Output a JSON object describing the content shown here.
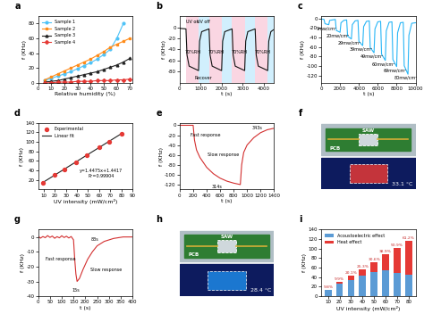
{
  "chart_data": [
    {
      "panel": "a",
      "type": "line",
      "xlabel": "Relative humidity (%)",
      "ylabel": "f (KHz)",
      "xlim": [
        0,
        72
      ],
      "xticks": [
        0,
        10,
        20,
        30,
        40,
        50,
        60,
        70
      ],
      "ylim": [
        0,
        90
      ],
      "yticks": [
        0,
        20,
        40,
        60,
        80
      ],
      "legend": "upper left",
      "series": [
        {
          "name": "Sample 1",
          "color": "#4fc3f7",
          "marker": "circle",
          "x": [
            5,
            10,
            15,
            20,
            25,
            30,
            35,
            40,
            45,
            50,
            55,
            60,
            65
          ],
          "values": [
            3,
            6,
            9,
            12,
            15,
            19,
            23,
            27,
            32,
            38,
            45,
            60,
            80
          ]
        },
        {
          "name": "Sample 2",
          "color": "#ff8c1a",
          "marker": "square",
          "x": [
            5,
            10,
            15,
            20,
            25,
            30,
            35,
            40,
            45,
            50,
            55,
            60,
            65,
            70
          ],
          "values": [
            4,
            8,
            12,
            16,
            20,
            24,
            28,
            32,
            37,
            42,
            48,
            52,
            56,
            60
          ]
        },
        {
          "name": "Sample 3",
          "color": "#222222",
          "marker": "triangle",
          "x": [
            5,
            10,
            15,
            20,
            25,
            30,
            35,
            40,
            45,
            50,
            55,
            60,
            65,
            70
          ],
          "values": [
            1,
            2,
            3,
            5,
            7,
            9,
            11,
            13,
            15,
            18,
            21,
            24,
            28,
            33
          ]
        },
        {
          "name": "Sample 4",
          "color": "#e53935",
          "marker": "diamond",
          "x": [
            5,
            10,
            15,
            20,
            25,
            30,
            35,
            40,
            45,
            50,
            55,
            60,
            65,
            70
          ],
          "values": [
            0,
            0,
            1,
            1,
            1,
            2,
            2,
            2,
            3,
            3,
            3,
            4,
            4,
            5
          ]
        }
      ]
    },
    {
      "panel": "b",
      "type": "line",
      "xlabel": "t (s)",
      "ylabel": "f (KHz)",
      "xlim": [
        0,
        4500
      ],
      "xticks": [
        0,
        1000,
        2000,
        3000,
        4000
      ],
      "ylim": [
        -100,
        20
      ],
      "yticks": [
        -80,
        -60,
        -40,
        -20,
        0
      ],
      "uv_on": [
        [
          300,
          900
        ],
        [
          1400,
          2000
        ],
        [
          2500,
          3100
        ],
        [
          3600,
          4200
        ]
      ],
      "rh_70": [
        [
          900,
          1400
        ],
        [
          2000,
          2500
        ],
        [
          3100,
          3600
        ],
        [
          4200,
          4500
        ]
      ],
      "series": [
        {
          "color": "#111111",
          "x": [
            0,
            300,
            350,
            450,
            900,
            950,
            1050,
            1400,
            1450,
            1550,
            2000,
            2050,
            2150,
            2500,
            2550,
            2650,
            3100,
            3150,
            3250,
            3600,
            3650,
            3750,
            4200,
            4250,
            4350,
            4500
          ],
          "values": [
            -2,
            -3,
            -50,
            -70,
            -78,
            -25,
            -8,
            -3,
            -50,
            -70,
            -78,
            -25,
            -8,
            -3,
            -50,
            -70,
            -78,
            -25,
            -8,
            -3,
            -50,
            -70,
            -78,
            -25,
            -8,
            -4
          ]
        }
      ],
      "annotations": [
        {
          "text": "UV on",
          "x": 600,
          "y": 10
        },
        {
          "text": "UV off",
          "x": 1150,
          "y": 10
        },
        {
          "text": "Recover",
          "x": 1150,
          "y": -92
        },
        {
          "text": "70%RH",
          "x": 650,
          "y": -45
        },
        {
          "text": "70%RH",
          "x": 1750,
          "y": -45
        },
        {
          "text": "70%RH",
          "x": 2850,
          "y": -45
        },
        {
          "text": "70%RH",
          "x": 3950,
          "y": -45
        }
      ]
    },
    {
      "panel": "c",
      "type": "line",
      "xlabel": "t (s)",
      "ylabel": "f (KHz)",
      "xlim": [
        0,
        10000
      ],
      "xticks": [
        0,
        2000,
        4000,
        6000,
        8000,
        10000
      ],
      "ylim": [
        -135,
        5
      ],
      "yticks": [
        -120,
        -100,
        -80,
        -60,
        -40,
        -20,
        0
      ],
      "series": [
        {
          "color": "#29b6f6",
          "x": [
            0,
            300,
            400,
            800,
            900,
            1200,
            1500,
            1600,
            2000,
            2100,
            2400,
            2700,
            2800,
            3200,
            3300,
            3600,
            3900,
            4000,
            4400,
            4500,
            4800,
            5100,
            5200,
            5600,
            5700,
            6000,
            6300,
            6400,
            6800,
            6900,
            7200,
            7500,
            7600,
            8000,
            8100,
            8400,
            8700,
            8800,
            9200,
            9300,
            9600,
            10000
          ],
          "values": [
            -1,
            -2,
            -11,
            -13,
            -4,
            -3,
            -2,
            -25,
            -29,
            -9,
            -4,
            -3,
            -37,
            -43,
            -13,
            -5,
            -4,
            -48,
            -57,
            -17,
            -6,
            -5,
            -61,
            -72,
            -22,
            -7,
            -6,
            -75,
            -88,
            -26,
            -8,
            -7,
            -86,
            -101,
            -30,
            -9,
            -8,
            -99,
            -117,
            -35,
            -10,
            -9
          ]
        }
      ],
      "annotations": [
        {
          "text": "9mw/cm²",
          "x": 600,
          "y": -21
        },
        {
          "text": "20mw/cm²",
          "x": 1800,
          "y": -37
        },
        {
          "text": "29mw/cm²",
          "x": 3000,
          "y": -51
        },
        {
          "text": "39mw/cm²",
          "x": 4200,
          "y": -65
        },
        {
          "text": "49mw/cm²",
          "x": 5400,
          "y": -80
        },
        {
          "text": "60mw/cm²",
          "x": 6600,
          "y": -96
        },
        {
          "text": "69mw/cm²",
          "x": 7800,
          "y": -109
        },
        {
          "text": "80mw/cm²",
          "x": 9000,
          "y": -125
        }
      ]
    },
    {
      "panel": "d",
      "type": "scatter",
      "xlabel": "UV intensity (mW/cm²)",
      "ylabel": "f (KHz)",
      "xlim": [
        5,
        90
      ],
      "xticks": [
        10,
        20,
        30,
        40,
        50,
        60,
        70,
        80,
        90
      ],
      "ylim": [
        0,
        140
      ],
      "yticks": [
        20,
        40,
        60,
        80,
        100,
        120,
        140
      ],
      "legend": "upper left",
      "series": [
        {
          "name": "Experimental",
          "color": "#e53935",
          "marker": "circle",
          "x": [
            9,
            20,
            29,
            39,
            49,
            60,
            69,
            80
          ],
          "values": [
            14,
            30,
            43,
            57,
            72,
            88,
            101,
            117
          ]
        }
      ],
      "fit": {
        "name": "Linear fit",
        "color": "#222222",
        "slope": 1.4475,
        "intercept": 1.4417
      },
      "annotations": [
        {
          "text": "y=1.4475x+1.4417",
          "x": 62,
          "y": 40
        },
        {
          "text": "R²=0.99904",
          "x": 62,
          "y": 28
        }
      ]
    },
    {
      "panel": "e",
      "type": "line",
      "xlabel": "t (s)",
      "ylabel": "f (KHz)",
      "xlim": [
        0,
        1400
      ],
      "xticks": [
        0,
        200,
        400,
        600,
        800,
        1000,
        1200,
        1400
      ],
      "ylim": [
        -130,
        5
      ],
      "yticks": [
        -120,
        -100,
        -80,
        -60,
        -40,
        -20,
        0
      ],
      "series": [
        {
          "color": "#d32f2f",
          "x": [
            0,
            200,
            220,
            250,
            300,
            400,
            500,
            600,
            700,
            800,
            900,
            920,
            950,
            1000,
            1100,
            1200,
            1300,
            1400
          ],
          "values": [
            0,
            0,
            -30,
            -50,
            -65,
            -85,
            -98,
            -107,
            -113,
            -117,
            -120,
            -80,
            -55,
            -40,
            -25,
            -15,
            -9,
            -6
          ]
        }
      ],
      "annotations": [
        {
          "text": "Fast response",
          "x": 380,
          "y": -20
        },
        {
          "text": "Slow response",
          "x": 650,
          "y": -60
        },
        {
          "text": "314s",
          "x": 560,
          "y": -125
        },
        {
          "text": "343s",
          "x": 1150,
          "y": -6
        }
      ]
    },
    {
      "panel": "f",
      "type": "photo",
      "labels": [
        "SAW",
        "PCB"
      ],
      "temperature": "33.1 °C",
      "color": "#e53935"
    },
    {
      "panel": "g",
      "type": "line",
      "xlabel": "t (s)",
      "ylabel": "f (KHz)",
      "xlim": [
        0,
        400
      ],
      "xticks": [
        0,
        50,
        100,
        150,
        200,
        250,
        300,
        350,
        400
      ],
      "ylim": [
        -40,
        5
      ],
      "yticks": [
        -40,
        -30,
        -20,
        -10,
        0
      ],
      "series": [
        {
          "color": "#d32f2f",
          "x": [
            0,
            10,
            20,
            30,
            40,
            50,
            60,
            70,
            80,
            90,
            100,
            110,
            120,
            130,
            140,
            150,
            155,
            160,
            165,
            175,
            190,
            210,
            230,
            250,
            280,
            320,
            360,
            400
          ],
          "values": [
            0.5,
            -0.8,
            0.3,
            -0.5,
            0.9,
            -0.3,
            0.6,
            -0.9,
            0.2,
            -0.6,
            0.8,
            -0.4,
            0.5,
            -0.7,
            0.3,
            -2,
            -15,
            -25,
            -30,
            -28,
            -22,
            -15,
            -10,
            -6,
            -3,
            -1,
            0,
            0
          ]
        }
      ],
      "annotations": [
        {
          "text": "Fast response",
          "x": 95,
          "y": -15
        },
        {
          "text": "Slow response",
          "x": 290,
          "y": -22
        },
        {
          "text": "15s",
          "x": 160,
          "y": -36
        },
        {
          "text": "83s",
          "x": 240,
          "y": -2
        }
      ]
    },
    {
      "panel": "h",
      "type": "photo",
      "labels": [
        "SAW",
        "PCB"
      ],
      "temperature": "28.4 °C",
      "color": "#1e88e5"
    },
    {
      "panel": "i",
      "type": "bar",
      "stacked": true,
      "xlabel": "UV intensity (mW/cm²)",
      "ylabel": "f (KHz)",
      "categories": [
        "10",
        "20",
        "30",
        "40",
        "50",
        "60",
        "70",
        "80"
      ],
      "ylim": [
        0,
        140
      ],
      "yticks": [
        0,
        20,
        40,
        60,
        80,
        100,
        120,
        140
      ],
      "legend": "upper left",
      "series": [
        {
          "name": "Acoustoelectric effect",
          "color": "#5b9bd5",
          "values": [
            12.6,
            27.0,
            34.4,
            42.6,
            50.0,
            53.8,
            49.6,
            45.4
          ]
        },
        {
          "name": "Heat effect",
          "color": "#e53935",
          "values": [
            1.4,
            3.0,
            8.6,
            14.4,
            22.0,
            34.2,
            51.4,
            71.6
          ]
        }
      ],
      "percent_labels": [
        "9.8%",
        "9.9%",
        "20.1%",
        "25.3%",
        "30.6%",
        "38.9%",
        "50.9%",
        "61.2%"
      ]
    }
  ]
}
